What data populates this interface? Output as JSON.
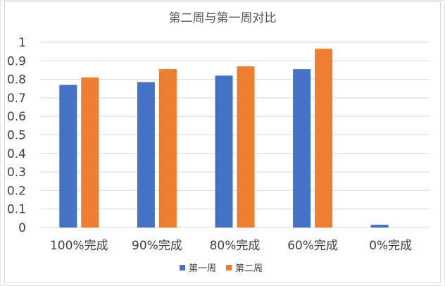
{
  "chart_data": {
    "type": "bar",
    "title": "第二周与第一周对比",
    "xlabel": "",
    "ylabel": "",
    "categories": [
      "100%完成",
      "90%完成",
      "80%完成",
      "60%完成",
      "0%完成"
    ],
    "series": [
      {
        "name": "第一周",
        "color": "#4472C4",
        "values": [
          0.77,
          0.785,
          0.82,
          0.855,
          0.015
        ]
      },
      {
        "name": "第二周",
        "color": "#ED7D31",
        "values": [
          0.81,
          0.855,
          0.87,
          0.965,
          0
        ]
      }
    ],
    "ylim": [
      0,
      1
    ],
    "yticks": [
      "0",
      "0.1",
      "0.2",
      "0.3",
      "0.4",
      "0.5",
      "0.6",
      "0.7",
      "0.8",
      "0.9",
      "1"
    ],
    "grid": true,
    "legend_position": "bottom",
    "gridline_color": "#d9d9d9"
  }
}
